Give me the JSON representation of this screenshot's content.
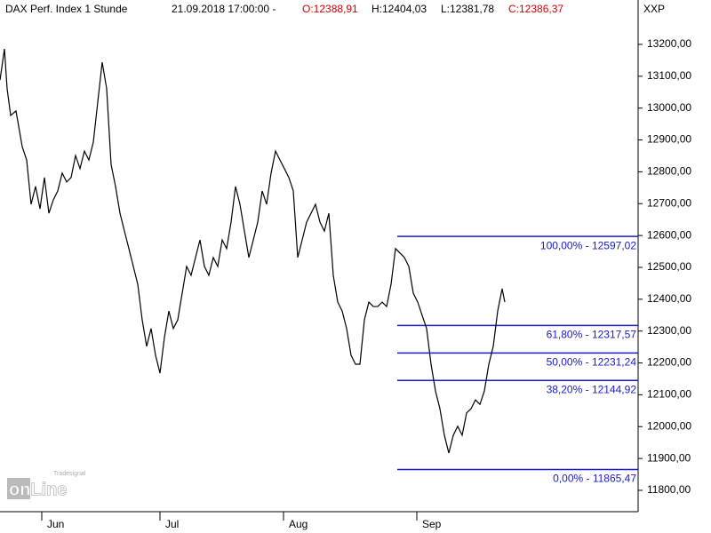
{
  "chart_data": {
    "type": "line",
    "title": "DAX Perf. Index 1 Stunde",
    "timestamp": "21.09.2018 17:00:00 -",
    "ohlc_labels": [
      "O:12388,91",
      "H:12404,03",
      "L:12381,78",
      "C:12386,37"
    ],
    "symbol": "XXP",
    "watermark": [
      "Tradesignal",
      "onLine"
    ],
    "series": [
      {
        "name": "DAX",
        "color": "#000000",
        "x": [
          0,
          5,
          8,
          12,
          18,
          25,
          30,
          35,
          40,
          45,
          50,
          55,
          60,
          65,
          70,
          75,
          80,
          85,
          90,
          95,
          100,
          105,
          110,
          115,
          120,
          125,
          130,
          135,
          140,
          145,
          150,
          155,
          160,
          165,
          170,
          175,
          180,
          185,
          190,
          195,
          200,
          205,
          210,
          215,
          220,
          225,
          230,
          235,
          240,
          245,
          250,
          255,
          260,
          265,
          270,
          275,
          280,
          285,
          290,
          295,
          300,
          305,
          310,
          315,
          320,
          325,
          330,
          335,
          340,
          345,
          350,
          355,
          360,
          365,
          370,
          375,
          380,
          385,
          390,
          395,
          400,
          405,
          410,
          415,
          420,
          425,
          430,
          435,
          440,
          445,
          450,
          455,
          460,
          465,
          470,
          475,
          480,
          485,
          490,
          495,
          500,
          505,
          510,
          515,
          520,
          525,
          530,
          535,
          540,
          545,
          550,
          555,
          560,
          565,
          568
        ],
        "values": [
          13088,
          13186,
          13061,
          12977,
          12991,
          12879,
          12837,
          12698,
          12754,
          12684,
          12782,
          12670,
          12712,
          12740,
          12796,
          12768,
          12782,
          12851,
          12810,
          12865,
          12837,
          12893,
          13019,
          13144,
          13061,
          12823,
          12754,
          12670,
          12614,
          12559,
          12503,
          12447,
          12335,
          12252,
          12308,
          12224,
          12168,
          12280,
          12363,
          12308,
          12335,
          12419,
          12503,
          12475,
          12531,
          12586,
          12503,
          12475,
          12531,
          12503,
          12586,
          12559,
          12642,
          12754,
          12698,
          12614,
          12531,
          12586,
          12642,
          12740,
          12698,
          12796,
          12865,
          12837,
          12810,
          12782,
          12740,
          12531,
          12586,
          12642,
          12670,
          12698,
          12642,
          12614,
          12670,
          12475,
          12391,
          12363,
          12308,
          12224,
          12196,
          12196,
          12335,
          12391,
          12377,
          12377,
          12391,
          12377,
          12447,
          12559,
          12545,
          12531,
          12503,
          12419,
          12391,
          12349,
          12308,
          12196,
          12112,
          12056,
          11973,
          11917,
          11973,
          12001,
          11973,
          12043,
          12056,
          12084,
          12070,
          12112,
          12196,
          12252,
          12363,
          12433,
          12391
        ]
      }
    ],
    "xlim": [
      0,
      718
    ],
    "xticks": [
      {
        "value": 55,
        "label": "Jun"
      },
      {
        "value": 188,
        "label": "Jul"
      },
      {
        "value": 327,
        "label": "Aug"
      },
      {
        "value": 477,
        "label": "Sep"
      }
    ],
    "ylim": [
      11733,
      13278
    ],
    "yticks": [
      {
        "value": 11800,
        "label": "11800,00"
      },
      {
        "value": 11900,
        "label": "11900,00"
      },
      {
        "value": 12000,
        "label": "12000,00"
      },
      {
        "value": 12100,
        "label": "12100,00"
      },
      {
        "value": 12200,
        "label": "12200,00"
      },
      {
        "value": 12300,
        "label": "12300,00"
      },
      {
        "value": 12400,
        "label": "12400,00"
      },
      {
        "value": 12500,
        "label": "12500,00"
      },
      {
        "value": 12600,
        "label": "12600,00"
      },
      {
        "value": 12700,
        "label": "12700,00"
      },
      {
        "value": 12800,
        "label": "12800,00"
      },
      {
        "value": 12900,
        "label": "12900,00"
      },
      {
        "value": 13000,
        "label": "13000,00"
      },
      {
        "value": 13100,
        "label": "13100,00"
      },
      {
        "value": 13200,
        "label": "13200,00"
      }
    ],
    "fib_color": "#1a1acc",
    "fib_start": 447,
    "fib_levels": [
      {
        "value": 12597.02,
        "label": "100,00% - 12597,02"
      },
      {
        "value": 12317.57,
        "label": "61,80% - 12317,57"
      },
      {
        "value": 12231.24,
        "label": "50,00% - 12231,24"
      },
      {
        "value": 12144.92,
        "label": "38,20% - 12144,92"
      },
      {
        "value": 11865.47,
        "label": "0,00% - 11865,47"
      }
    ]
  }
}
